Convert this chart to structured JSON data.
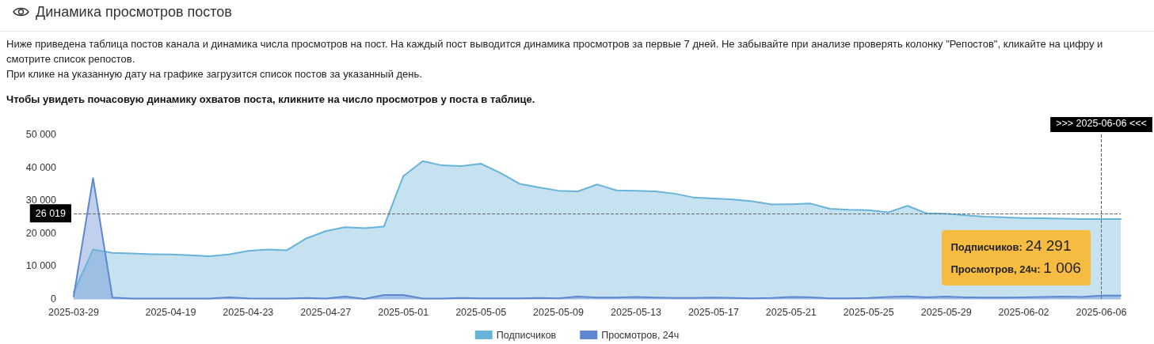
{
  "chart_data": {
    "type": "area",
    "title": "Динамика просмотров постов",
    "subtitle": "Ниже приведена таблица постов канала и динамика числа просмотров на пост. На каждый пост выводится динамика просмотров за первые 7 дней. Не забывайте при анализе проверять колонку \"Репостов\", кликайте на цифру и смотрите список репостов.\nПри клике на указанную дату на графике загрузится список постов за указанный день.",
    "annotations": [
      "Чтобы увидеть почасовую динамику охватов поста, кликните на число просмотров у поста в таблице.",
      {
        "text": "Подписчиков: 24 291",
        "x": "2025-06-06",
        "y": 24291
      },
      {
        "text": "Просмотров, 24ч: 1 006",
        "x": "2025-06-06",
        "y": 1006
      }
    ],
    "categories": [
      "2025-03-29",
      null,
      null,
      null,
      null,
      "2025-04-19",
      null,
      null,
      null,
      "2025-04-23",
      null,
      null,
      null,
      "2025-04-27",
      null,
      null,
      null,
      "2025-05-01",
      null,
      null,
      null,
      "2025-05-05",
      null,
      null,
      null,
      "2025-05-09",
      null,
      null,
      null,
      "2025-05-13",
      null,
      null,
      null,
      "2025-05-17",
      null,
      null,
      null,
      "2025-05-21",
      null,
      null,
      null,
      "2025-05-25",
      null,
      null,
      null,
      "2025-05-29",
      null,
      null,
      null,
      "2025-06-02",
      null,
      null,
      null,
      "2025-06-06",
      null
    ],
    "series": [
      {
        "name": "Подписчиков",
        "color": "#68b3da",
        "values": [
          2000,
          15000,
          14000,
          13800,
          13600,
          13500,
          13300,
          13000,
          13500,
          14600,
          15000,
          14800,
          18400,
          20600,
          21800,
          21500,
          22000,
          37300,
          41900,
          40600,
          40400,
          41100,
          38300,
          35000,
          33900,
          32900,
          32700,
          34800,
          33000,
          32900,
          32700,
          32000,
          30800,
          30500,
          30200,
          29700,
          28700,
          28800,
          29000,
          27400,
          27100,
          27000,
          26300,
          28300,
          26000,
          25900,
          25400,
          25000,
          24800,
          24600,
          24500,
          24400,
          24300,
          24291,
          24300
        ]
      },
      {
        "name": "Просмотров, 24ч",
        "color": "#5d87d0",
        "values": [
          800,
          36700,
          400,
          100,
          100,
          100,
          100,
          100,
          500,
          200,
          100,
          100,
          300,
          100,
          700,
          0,
          1200,
          1200,
          100,
          100,
          300,
          200,
          200,
          200,
          300,
          200,
          700,
          400,
          400,
          600,
          400,
          300,
          300,
          400,
          300,
          200,
          300,
          600,
          500,
          200,
          200,
          300,
          600,
          800,
          500,
          700,
          500,
          400,
          400,
          500,
          600,
          700,
          600,
          1006,
          1000
        ]
      }
    ],
    "ylim": [
      0,
      50000
    ],
    "yticks": [
      0,
      {
        "value": 10000,
        "label": "10 000"
      },
      {
        "value": 20000,
        "label": "20 000"
      },
      {
        "value": 30000,
        "label": "30 000"
      },
      {
        "value": 40000,
        "label": "40 000"
      },
      {
        "value": 50000,
        "label": "50 000"
      }
    ],
    "ref_lines": [
      {
        "axis": "y",
        "value": 26019,
        "label": "26 019",
        "line_style": "dashed"
      },
      {
        "axis": "x",
        "value": "2025-06-06",
        "label": ">>> 2025-06-06 <<<",
        "line_style": "dashed"
      }
    ],
    "legend": "bottom",
    "marker": "none"
  }
}
